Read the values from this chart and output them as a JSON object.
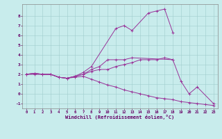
{
  "bg_color": "#c8ecec",
  "line_color": "#993399",
  "xlim": [
    -0.5,
    23.5
  ],
  "ylim": [
    -1.5,
    9.2
  ],
  "xticks": [
    0,
    1,
    2,
    3,
    4,
    5,
    6,
    7,
    8,
    9,
    10,
    11,
    12,
    13,
    14,
    15,
    16,
    17,
    18,
    19,
    20,
    21,
    22,
    23
  ],
  "yticks": [
    -1,
    0,
    1,
    2,
    3,
    4,
    5,
    6,
    7,
    8
  ],
  "xlabel": "Windchill (Refroidissement éolien,°C)",
  "line1_x": [
    0,
    1,
    2,
    3,
    4,
    5,
    6,
    7,
    8,
    9,
    10,
    11,
    12,
    13,
    18
  ],
  "line1_y": [
    2.0,
    2.1,
    2.0,
    2.0,
    1.7,
    1.6,
    1.8,
    2.0,
    2.5,
    2.8,
    3.5,
    3.5,
    3.5,
    3.7,
    3.5
  ],
  "line2_x": [
    0,
    1,
    2,
    3,
    4,
    5,
    6,
    7,
    8,
    11,
    12,
    13,
    15,
    16,
    17,
    18
  ],
  "line2_y": [
    2.0,
    2.1,
    2.0,
    2.0,
    1.7,
    1.6,
    1.8,
    2.2,
    2.8,
    6.7,
    7.0,
    6.5,
    8.3,
    8.5,
    8.7,
    6.3
  ],
  "line3_x": [
    0,
    1,
    2,
    3,
    4,
    5,
    6,
    7,
    8,
    9,
    10,
    11,
    12,
    13,
    14,
    15,
    16,
    17,
    18,
    19,
    20,
    21,
    23
  ],
  "line3_y": [
    2.0,
    2.1,
    2.0,
    2.0,
    1.7,
    1.6,
    1.8,
    2.0,
    2.3,
    2.5,
    2.5,
    2.8,
    3.0,
    3.2,
    3.5,
    3.5,
    3.5,
    3.7,
    3.5,
    1.3,
    0.0,
    0.7,
    -1.0
  ],
  "line4_x": [
    0,
    1,
    2,
    3,
    4,
    5,
    6,
    7,
    8,
    9,
    10,
    11,
    12,
    13,
    14,
    15,
    16,
    17,
    18,
    19,
    20,
    21,
    22,
    23
  ],
  "line4_y": [
    2.0,
    2.0,
    2.0,
    2.0,
    1.7,
    1.6,
    1.7,
    1.8,
    1.5,
    1.2,
    0.9,
    0.7,
    0.4,
    0.2,
    0.0,
    -0.2,
    -0.4,
    -0.5,
    -0.6,
    -0.8,
    -0.9,
    -1.0,
    -1.1,
    -1.2
  ]
}
